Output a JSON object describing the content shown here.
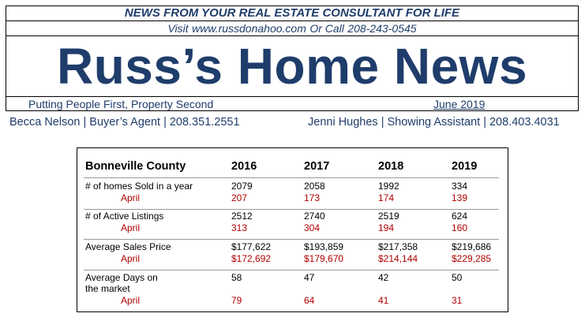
{
  "header": {
    "news_line": "NEWS FROM YOUR REAL ESTATE CONSULTANT FOR LIFE",
    "visit_prefix": "Visit",
    "website": "www.russdonahoo.com",
    "call_text": "Or Call",
    "phone": "208-243-0545",
    "title": "Russ’s Home News",
    "slogan": "Putting People First, Property Second",
    "date": "June  2019"
  },
  "team": {
    "left": "Becca Nelson | Buyer’s Agent | 208.351.2551",
    "right": "Jenni Hughes | Showing Assistant | 208.403.4031"
  },
  "table": {
    "county": "Bonneville County",
    "years": [
      "2016",
      "2017",
      "2018",
      "2019"
    ],
    "rows": [
      {
        "label": "# of homes Sold in a year",
        "values": [
          "2079",
          "2058",
          "1992",
          "334"
        ],
        "sub_label": "April",
        "sub_values": [
          "207",
          "173",
          "174",
          "139"
        ]
      },
      {
        "label": "# of Active Listings",
        "values": [
          "2512",
          "2740",
          "2519",
          "624"
        ],
        "sub_label": "April",
        "sub_values": [
          "313",
          "304",
          "194",
          "160"
        ]
      },
      {
        "label": "Average Sales Price",
        "values": [
          "$177,622",
          "$193,859",
          "$217,358",
          "$219,686"
        ],
        "sub_label": "April",
        "sub_values": [
          "$172,692",
          "$179,670",
          "$214,144",
          "$229,285"
        ]
      },
      {
        "label": "Average Days on",
        "label2": "the market",
        "values": [
          "58",
          "47",
          "42",
          "50"
        ],
        "sub_label": "April",
        "sub_values": [
          "79",
          "64",
          "41",
          "31"
        ]
      }
    ]
  },
  "colors": {
    "brand_blue": "#1f3d6b",
    "april_red": "#b00000"
  }
}
